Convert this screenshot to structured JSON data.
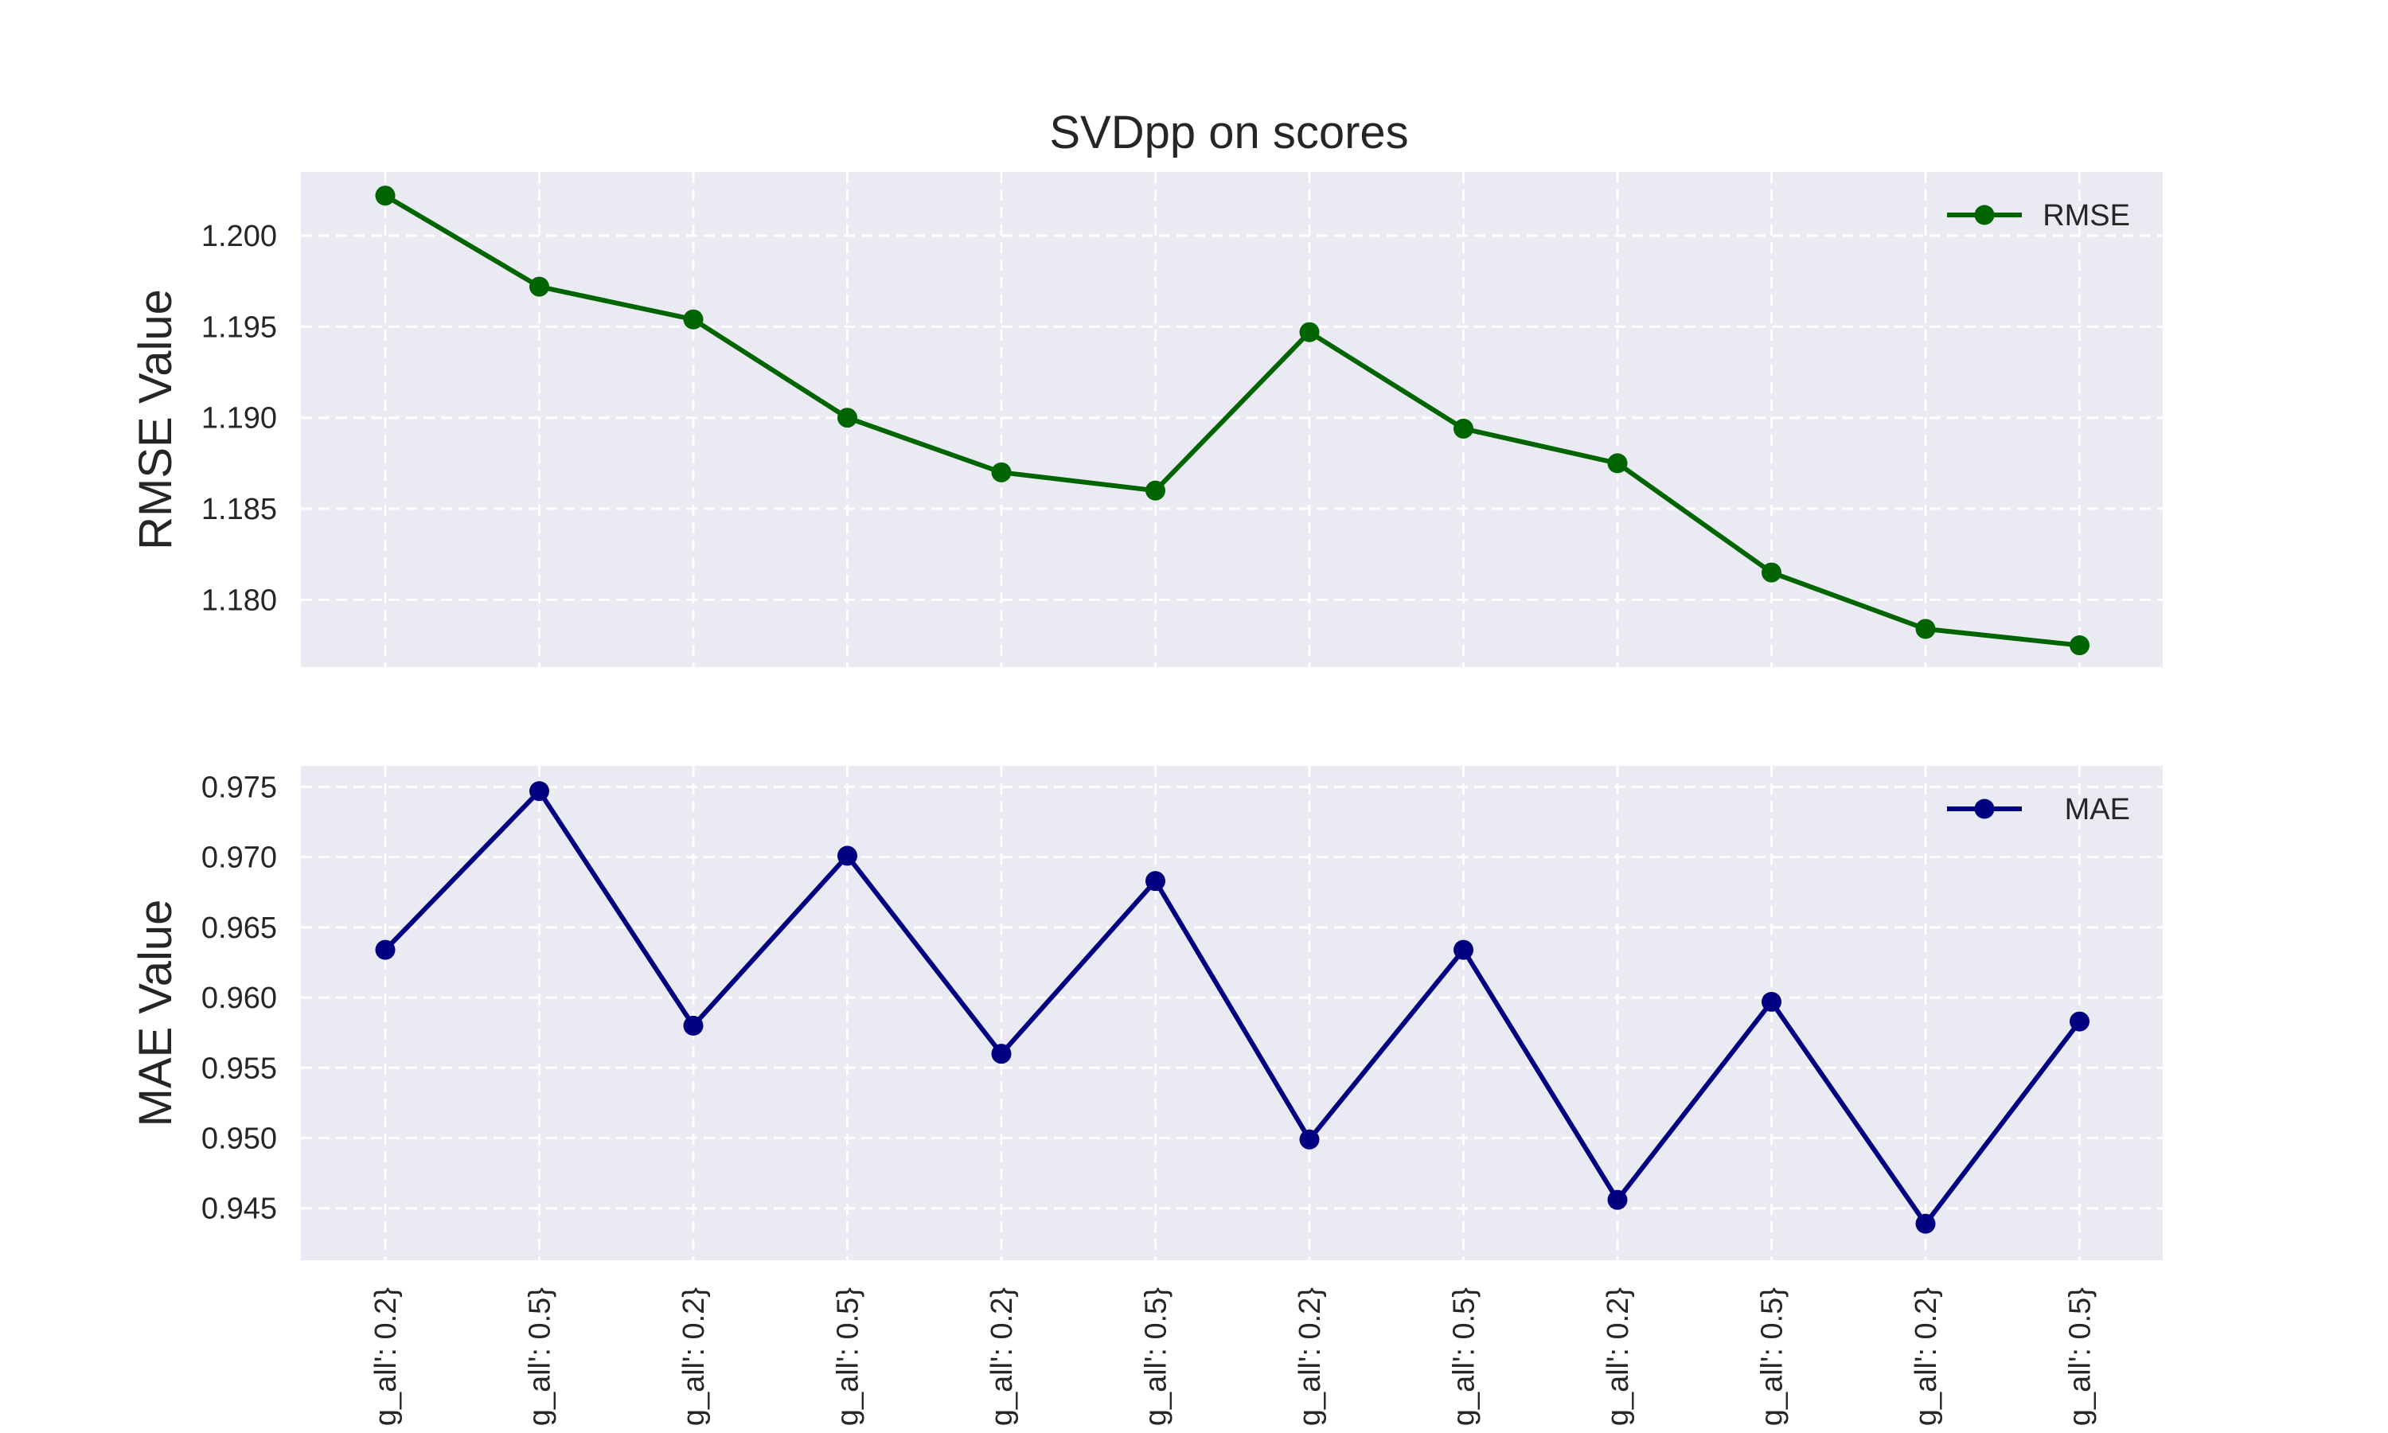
{
  "figure": {
    "title": "SVDpp on scores"
  },
  "chart_data": [
    {
      "type": "line",
      "title": "SVDpp on scores",
      "xlabel": "",
      "ylabel": "RMSE Value",
      "categories": [
        "g_all': 0.2}",
        "g_all': 0.5}",
        "g_all': 0.2}",
        "g_all': 0.5}",
        "g_all': 0.2}",
        "g_all': 0.5}",
        "g_all': 0.2}",
        "g_all': 0.5}",
        "g_all': 0.2}",
        "g_all': 0.5}",
        "g_all': 0.2}",
        "g_all': 0.5}"
      ],
      "series": [
        {
          "name": "RMSE",
          "color": "#006400",
          "values": [
            1.2022,
            1.1972,
            1.1954,
            1.19,
            1.187,
            1.186,
            1.1947,
            1.1894,
            1.1875,
            1.1815,
            1.1784,
            1.1775
          ]
        }
      ],
      "ylim": [
        1.1763,
        1.2035
      ],
      "yticks": [
        "1.180",
        "1.185",
        "1.190",
        "1.195",
        "1.200"
      ],
      "ytick_values": [
        1.18,
        1.185,
        1.19,
        1.195,
        1.2
      ],
      "grid": true,
      "legend": "top-right"
    },
    {
      "type": "line",
      "title": "",
      "xlabel": "",
      "ylabel": "MAE Value",
      "categories": [
        "g_all': 0.2}",
        "g_all': 0.5}",
        "g_all': 0.2}",
        "g_all': 0.5}",
        "g_all': 0.2}",
        "g_all': 0.5}",
        "g_all': 0.2}",
        "g_all': 0.5}",
        "g_all': 0.2}",
        "g_all': 0.5}",
        "g_all': 0.2}",
        "g_all': 0.5}"
      ],
      "series": [
        {
          "name": "MAE",
          "color": "#000080",
          "values": [
            0.9634,
            0.9747,
            0.958,
            0.9701,
            0.956,
            0.9683,
            0.9499,
            0.9634,
            0.9456,
            0.9597,
            0.9439,
            0.9583
          ]
        }
      ],
      "ylim": [
        0.9413,
        0.9765
      ],
      "yticks": [
        "0.945",
        "0.950",
        "0.955",
        "0.960",
        "0.965",
        "0.970",
        "0.975"
      ],
      "ytick_values": [
        0.945,
        0.95,
        0.955,
        0.96,
        0.965,
        0.97,
        0.975
      ],
      "grid": true,
      "legend": "top-right"
    }
  ]
}
